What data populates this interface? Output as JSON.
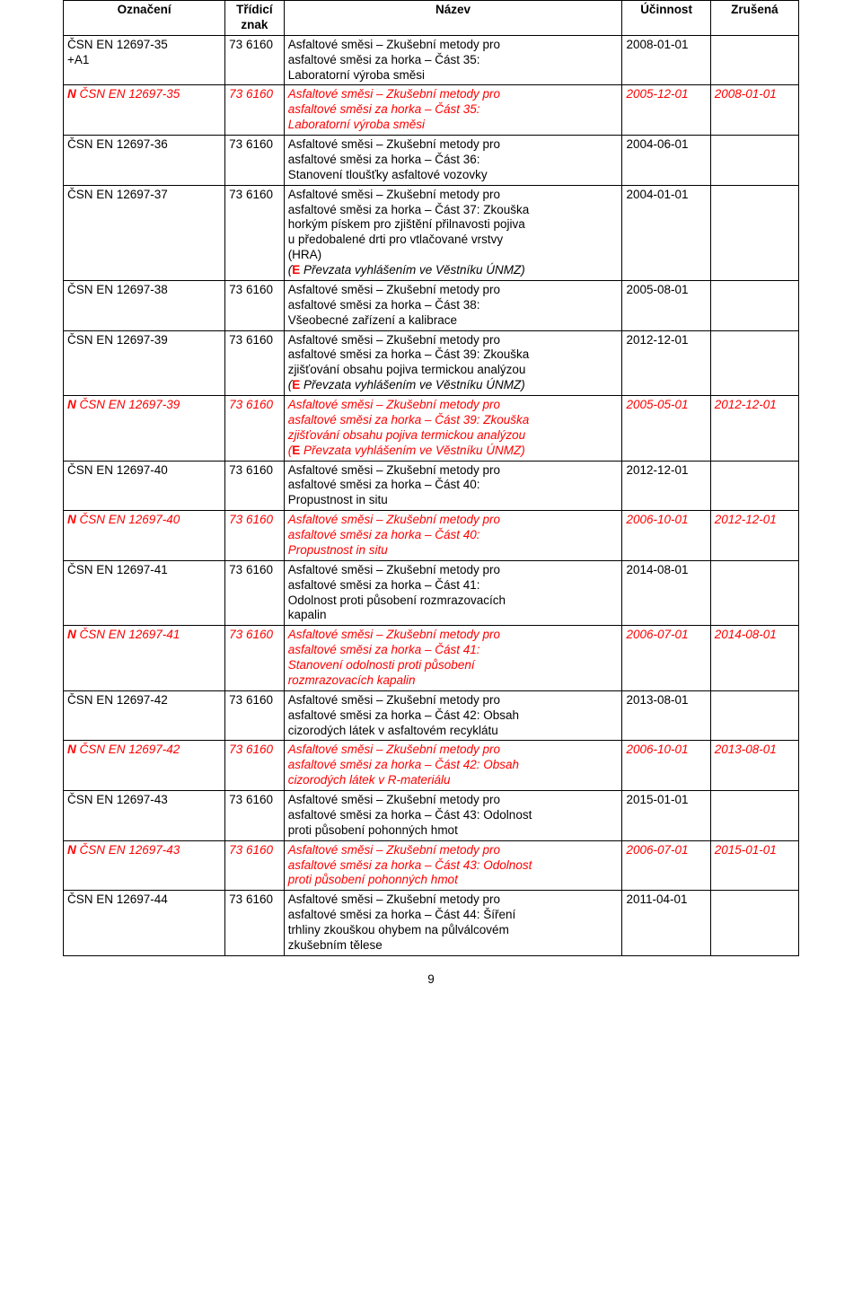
{
  "table": {
    "col_widths": [
      "22%",
      "8%",
      "46%",
      "12%",
      "12%"
    ],
    "headers": [
      "Označení",
      "Třídicí znak",
      "Název",
      "Účinnost",
      "Zrušená"
    ],
    "rows": [
      {
        "oznac": [
          "ČSN EN 12697-35",
          "+A1"
        ],
        "znak": "73 6160",
        "nazev": [
          "Asfaltové směsi – Zkušební metody pro",
          "asfaltové směsi za horka – Část 35:",
          "Laboratorní výroba směsi"
        ],
        "ucinnost": "2008-01-01",
        "zrusena": "",
        "red": false,
        "italic": false
      },
      {
        "oznac_prefix": "N ",
        "oznac": [
          "ČSN EN 12697-35"
        ],
        "znak": "73 6160",
        "nazev": [
          "Asfaltové směsi – Zkušební metody pro",
          "asfaltové směsi za horka – Část 35:",
          "Laboratorní výroba směsi"
        ],
        "ucinnost": "2005-12-01",
        "zrusena": "2008-01-01",
        "red": true,
        "italic": true
      },
      {
        "oznac": [
          "ČSN EN 12697-36"
        ],
        "znak": "73 6160",
        "nazev": [
          "Asfaltové směsi – Zkušební metody pro",
          "asfaltové směsi za horka – Část 36:",
          "Stanovení tloušťky asfaltové vozovky"
        ],
        "ucinnost": "2004-06-01",
        "zrusena": "",
        "red": false,
        "italic": false
      },
      {
        "oznac": [
          "ČSN EN 12697-37"
        ],
        "znak": "73 6160",
        "nazev": [
          "Asfaltové směsi – Zkušební metody pro",
          "asfaltové směsi za horka – Část 37: Zkouška",
          "horkým pískem pro zjištění přilnavosti pojiva",
          "u předobalené drti pro vtlačované vrstvy",
          "(HRA)"
        ],
        "nazev_extra": "Převzata vyhlášením ve Věstníku ÚNMZ)",
        "ucinnost": "2004-01-01",
        "zrusena": "",
        "red": false,
        "italic": false
      },
      {
        "oznac": [
          "ČSN EN 12697-38"
        ],
        "znak": "73 6160",
        "nazev": [
          "Asfaltové směsi – Zkušební metody pro",
          "asfaltové směsi za horka – Část 38:",
          "Všeobecné zařízení a kalibrace"
        ],
        "ucinnost": "2005-08-01",
        "zrusena": "",
        "red": false,
        "italic": false
      },
      {
        "oznac": [
          "ČSN EN 12697-39"
        ],
        "znak": "73 6160",
        "nazev": [
          "Asfaltové směsi – Zkušební metody pro",
          "asfaltové směsi za horka – Část 39: Zkouška",
          "zjišťování obsahu pojiva termickou analýzou"
        ],
        "nazev_extra": "Převzata vyhlášením ve Věstníku ÚNMZ)",
        "ucinnost": "2012-12-01",
        "zrusena": "",
        "red": false,
        "italic": false
      },
      {
        "oznac_prefix": "N ",
        "oznac": [
          "ČSN EN 12697-39"
        ],
        "znak": "73 6160",
        "nazev": [
          "Asfaltové směsi – Zkušební metody pro",
          "asfaltové směsi za horka – Část 39: Zkouška",
          "zjišťování obsahu pojiva termickou analýzou"
        ],
        "nazev_extra": "Převzata vyhlášením ve Věstníku ÚNMZ)",
        "ucinnost": "2005-05-01",
        "zrusena": "2012-12-01",
        "red": true,
        "italic": true
      },
      {
        "oznac": [
          "ČSN EN 12697-40"
        ],
        "znak": "73 6160",
        "nazev": [
          "Asfaltové směsi – Zkušební metody pro",
          "asfaltové směsi za horka – Část 40:",
          "Propustnost in situ"
        ],
        "ucinnost": "2012-12-01",
        "zrusena": "",
        "red": false,
        "italic": false
      },
      {
        "oznac_prefix": "N ",
        "oznac": [
          "ČSN EN 12697-40"
        ],
        "znak": "73 6160",
        "nazev": [
          "Asfaltové směsi – Zkušební metody pro",
          "asfaltové směsi za horka – Část 40:",
          "Propustnost in situ"
        ],
        "ucinnost": "2006-10-01",
        "zrusena": "2012-12-01",
        "red": true,
        "italic": true
      },
      {
        "oznac": [
          "ČSN EN 12697-41"
        ],
        "znak": "73 6160",
        "nazev": [
          "Asfaltové směsi – Zkušební metody pro",
          "asfaltové směsi za horka – Část 41:",
          "Odolnost proti působení rozmrazovacích",
          "kapalin"
        ],
        "ucinnost": "2014-08-01",
        "zrusena": "",
        "red": false,
        "italic": false
      },
      {
        "oznac_prefix": "N ",
        "oznac": [
          "ČSN EN 12697-41"
        ],
        "znak": "73 6160",
        "nazev": [
          "Asfaltové směsi – Zkušební metody pro",
          "asfaltové směsi za horka – Část 41:",
          "Stanovení odolnosti proti působení",
          "rozmrazovacích kapalin"
        ],
        "ucinnost": "2006-07-01",
        "zrusena": "2014-08-01",
        "red": true,
        "italic": true
      },
      {
        "oznac": [
          "ČSN EN 12697-42"
        ],
        "znak": "73 6160",
        "nazev": [
          "Asfaltové směsi – Zkušební metody pro",
          "asfaltové směsi za horka – Část 42: Obsah",
          "cizorodých látek v asfaltovém recyklátu"
        ],
        "ucinnost": "2013-08-01",
        "zrusena": "",
        "red": false,
        "italic": false
      },
      {
        "oznac_prefix": "N ",
        "oznac": [
          "ČSN EN 12697-42"
        ],
        "znak": "73 6160",
        "nazev": [
          "Asfaltové směsi – Zkušební metody pro",
          "asfaltové směsi za horka – Část 42: Obsah",
          "cizorodých látek v R-materiálu"
        ],
        "ucinnost": "2006-10-01",
        "zrusena": "2013-08-01",
        "red": true,
        "italic": true
      },
      {
        "oznac": [
          "ČSN EN 12697-43"
        ],
        "znak": "73 6160",
        "nazev": [
          "Asfaltové směsi – Zkušební metody pro",
          "asfaltové směsi za horka – Část 43: Odolnost",
          "proti působení pohonných hmot"
        ],
        "ucinnost": "2015-01-01",
        "zrusena": "",
        "red": false,
        "italic": false
      },
      {
        "oznac_prefix": "N ",
        "oznac": [
          "ČSN EN 12697-43"
        ],
        "znak": "73 6160",
        "nazev": [
          "Asfaltové směsi – Zkušební metody pro",
          "asfaltové směsi za horka – Část 43: Odolnost",
          "proti působení pohonných hmot"
        ],
        "ucinnost": "2006-07-01",
        "zrusena": "2015-01-01",
        "red": true,
        "italic": true
      },
      {
        "oznac": [
          "ČSN EN 12697-44"
        ],
        "znak": "73 6160",
        "nazev": [
          "Asfaltové směsi – Zkušební metody pro",
          "asfaltové směsi za horka – Část 44: Šíření",
          "trhliny zkouškou ohybem na půlválcovém",
          "zkušebním tělese"
        ],
        "ucinnost": "2011-04-01",
        "zrusena": "",
        "red": false,
        "italic": false
      }
    ],
    "extra_prefix_left": "(",
    "extra_E": "E ",
    "page_number": "9"
  },
  "colors": {
    "text": "#000000",
    "red": "#ff0000",
    "border": "#000000",
    "background": "#ffffff"
  },
  "typography": {
    "font_family": "Arial, Helvetica, sans-serif",
    "font_size_pt": 10.5
  }
}
